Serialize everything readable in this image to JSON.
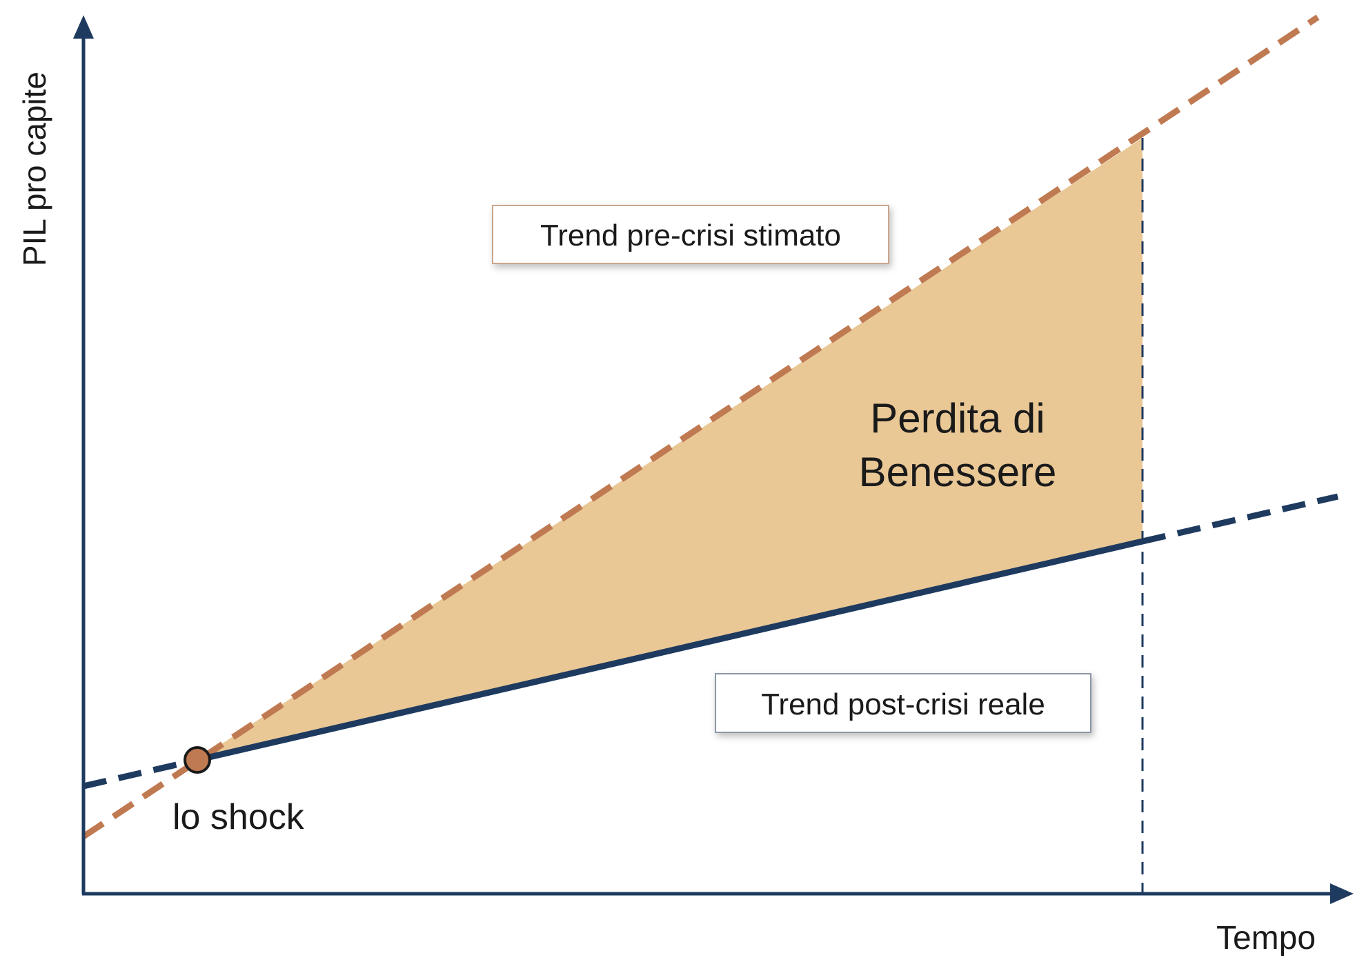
{
  "axes": {
    "y_label": "PIL pro capite",
    "x_label": "Tempo"
  },
  "annotations": {
    "shock": "lo shock",
    "pre_trend": "Trend pre-crisi stimato",
    "post_trend": "Trend post-crisi reale",
    "loss": [
      "Perdita di",
      "Benessere"
    ]
  }
}
